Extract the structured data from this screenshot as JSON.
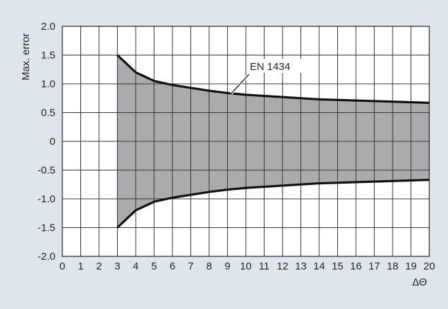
{
  "chart_data": {
    "type": "area",
    "title": "",
    "xlabel": "ΔΘ",
    "ylabel": "Max. error",
    "xlim": [
      0,
      20
    ],
    "ylim": [
      -2.0,
      2.0
    ],
    "xticks": [
      "0",
      "1",
      "2",
      "3",
      "4",
      "5",
      "6",
      "7",
      "8",
      "9",
      "10",
      "11",
      "12",
      "13",
      "14",
      "15",
      "16",
      "17",
      "18",
      "19",
      "20"
    ],
    "yticks": [
      "2.0",
      "1.5",
      "1.0",
      "0.5",
      "0",
      "-0.5",
      "-1.0",
      "-1.5",
      "-2.0"
    ],
    "grid": true,
    "band": {
      "name": "EN 1434",
      "x": [
        3,
        4,
        5,
        6,
        7,
        8,
        9,
        10,
        11,
        12,
        13,
        14,
        15,
        16,
        17,
        18,
        19,
        20
      ],
      "upper": [
        1.5,
        1.2,
        1.05,
        0.98,
        0.93,
        0.88,
        0.84,
        0.81,
        0.79,
        0.77,
        0.75,
        0.73,
        0.72,
        0.71,
        0.7,
        0.69,
        0.68,
        0.67
      ],
      "lower": [
        -1.5,
        -1.2,
        -1.05,
        -0.98,
        -0.93,
        -0.88,
        -0.84,
        -0.81,
        -0.79,
        -0.77,
        -0.75,
        -0.73,
        -0.72,
        -0.71,
        -0.7,
        -0.69,
        -0.68,
        -0.67
      ]
    },
    "annotation": {
      "text": "EN 1434",
      "x": 9.2,
      "y": 0.83
    },
    "colors": {
      "fill": "#a9abaf",
      "curve": "#111111",
      "grid": "#333333",
      "background": "#dfe6ec",
      "plot_bg": "#ffffff"
    }
  }
}
